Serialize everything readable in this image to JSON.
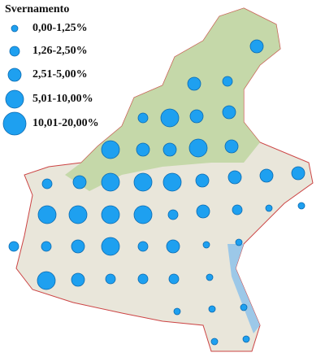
{
  "legend": {
    "title": "Svernamento",
    "items": [
      "0,00-1,25%",
      "1,26-2,50%",
      "2,51-5,00%",
      "5,01-10,00%",
      "10,01-20,00%"
    ]
  },
  "point_classes": [
    2,
    2,
    1,
    1,
    3,
    2,
    2,
    3,
    2,
    2,
    3,
    2,
    1,
    2,
    3,
    3,
    3,
    2,
    2,
    2,
    2,
    3,
    3,
    3,
    3,
    1,
    2,
    1,
    0,
    0,
    1,
    1,
    2,
    3,
    1,
    2,
    0,
    0,
    3,
    2,
    1,
    1,
    1,
    0,
    0,
    0,
    0,
    0,
    0
  ]
}
